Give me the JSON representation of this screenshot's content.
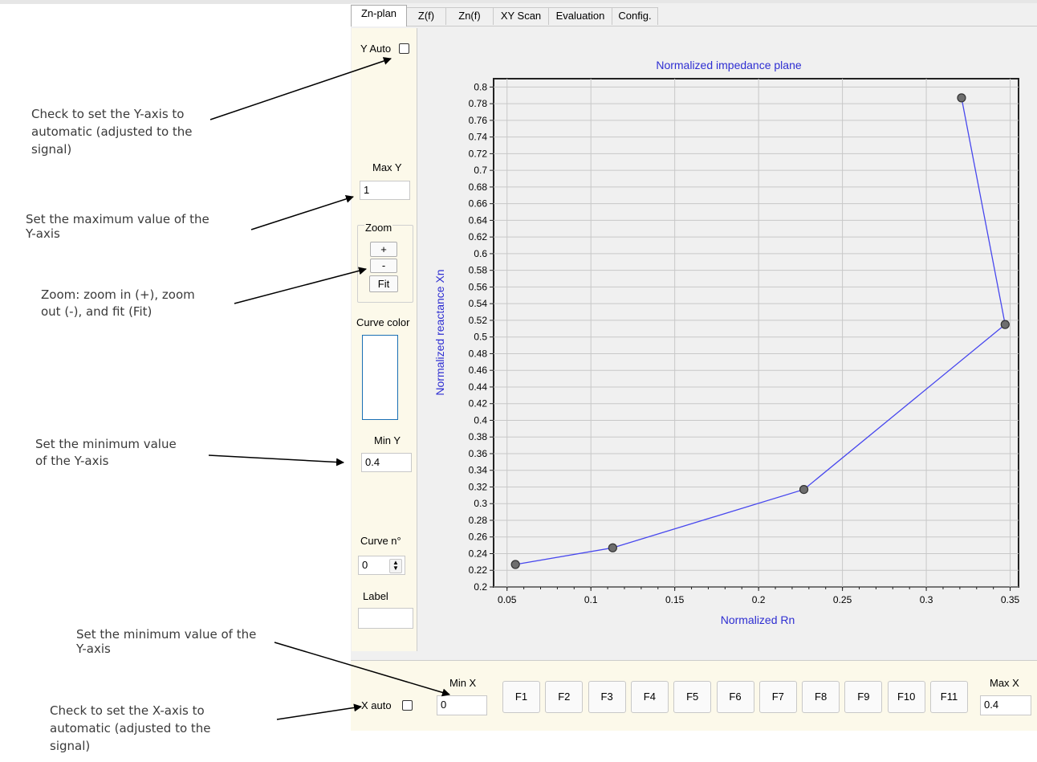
{
  "annotations": {
    "y_auto_note": [
      "Check to set the Y-axis to",
      "automatic (adjusted to the",
      "signal)"
    ],
    "max_y_note": [
      "Set the maximum value of the",
      "Y-axis"
    ],
    "zoom_note": [
      "Zoom: zoom in (+), zoom",
      "out (-), and fit (Fit)"
    ],
    "min_y_note": [
      "Set the minimum value",
      "of the Y-axis"
    ],
    "min_x_note": [
      "Set the minimum value of the",
      "Y-axis"
    ],
    "x_auto_note": [
      "Check to set the X-axis to",
      "automatic (adjusted to the",
      "signal)"
    ]
  },
  "tabs": [
    "Zn-plan",
    "Z(f)",
    "Zn(f)",
    "XY Scan",
    "Evaluation",
    "Config."
  ],
  "active_tab": "Zn-plan",
  "left_panel": {
    "y_auto_label": "Y Auto",
    "max_y_label": "Max Y",
    "max_y_value": "1",
    "zoom_label": "Zoom",
    "zoom_in": "+",
    "zoom_out": "-",
    "zoom_fit": "Fit",
    "curve_color_label": "Curve color",
    "min_y_label": "Min Y",
    "min_y_value": "0.4",
    "curve_no_label": "Curve n°",
    "curve_no_value": "0",
    "label_label": "Label",
    "label_value": ""
  },
  "bottom_panel": {
    "x_auto_label": "X auto",
    "min_x_label": "Min X",
    "min_x_value": "0",
    "max_x_label": "Max X",
    "max_x_value": "0.4",
    "f_buttons": [
      "F1",
      "F2",
      "F3",
      "F4",
      "F5",
      "F6",
      "F7",
      "F8",
      "F9",
      "F10",
      "F11"
    ]
  },
  "colors": {
    "curve": "#4747ee",
    "title": "#2e2ed2",
    "panel_bg": "#fcf9ea",
    "plot_bg": "#f0f0f0",
    "grid": "#c8c8c8",
    "curve_color_swatch_border": "#1a6fb5"
  },
  "chart_data": {
    "type": "line",
    "title": "Normalized impedance plane",
    "xlabel": "Normalized Rn",
    "ylabel": "Normalized reactance Xn",
    "xlim": [
      0.042,
      0.355
    ],
    "ylim": [
      0.2,
      0.81
    ],
    "x_ticks": [
      0.05,
      0.1,
      0.15,
      0.2,
      0.25,
      0.3,
      0.35
    ],
    "x_tick_labels": [
      "0.05",
      "0.1",
      "0.15",
      "0.2",
      "0.25",
      "0.3",
      "0.35"
    ],
    "y_ticks": [
      0.2,
      0.22,
      0.24,
      0.26,
      0.28,
      0.3,
      0.32,
      0.34,
      0.36,
      0.38,
      0.4,
      0.42,
      0.44,
      0.46,
      0.48,
      0.5,
      0.52,
      0.54,
      0.56,
      0.58,
      0.6,
      0.62,
      0.64,
      0.66,
      0.68,
      0.7,
      0.72,
      0.74,
      0.76,
      0.78,
      0.8
    ],
    "y_tick_labels": [
      "0.2",
      "0.22",
      "0.24",
      "0.26",
      "0.28",
      "0.3",
      "0.32",
      "0.34",
      "0.36",
      "0.38",
      "0.4",
      "0.42",
      "0.44",
      "0.46",
      "0.48",
      "0.5",
      "0.52",
      "0.54",
      "0.56",
      "0.58",
      "0.6",
      "0.62",
      "0.64",
      "0.66",
      "0.68",
      "0.7",
      "0.72",
      "0.74",
      "0.76",
      "0.78",
      "0.8"
    ],
    "grid": true,
    "series": [
      {
        "x": [
          0.055,
          0.113,
          0.227,
          0.347,
          0.321
        ],
        "y": [
          0.227,
          0.247,
          0.317,
          0.515,
          0.787
        ]
      }
    ]
  }
}
